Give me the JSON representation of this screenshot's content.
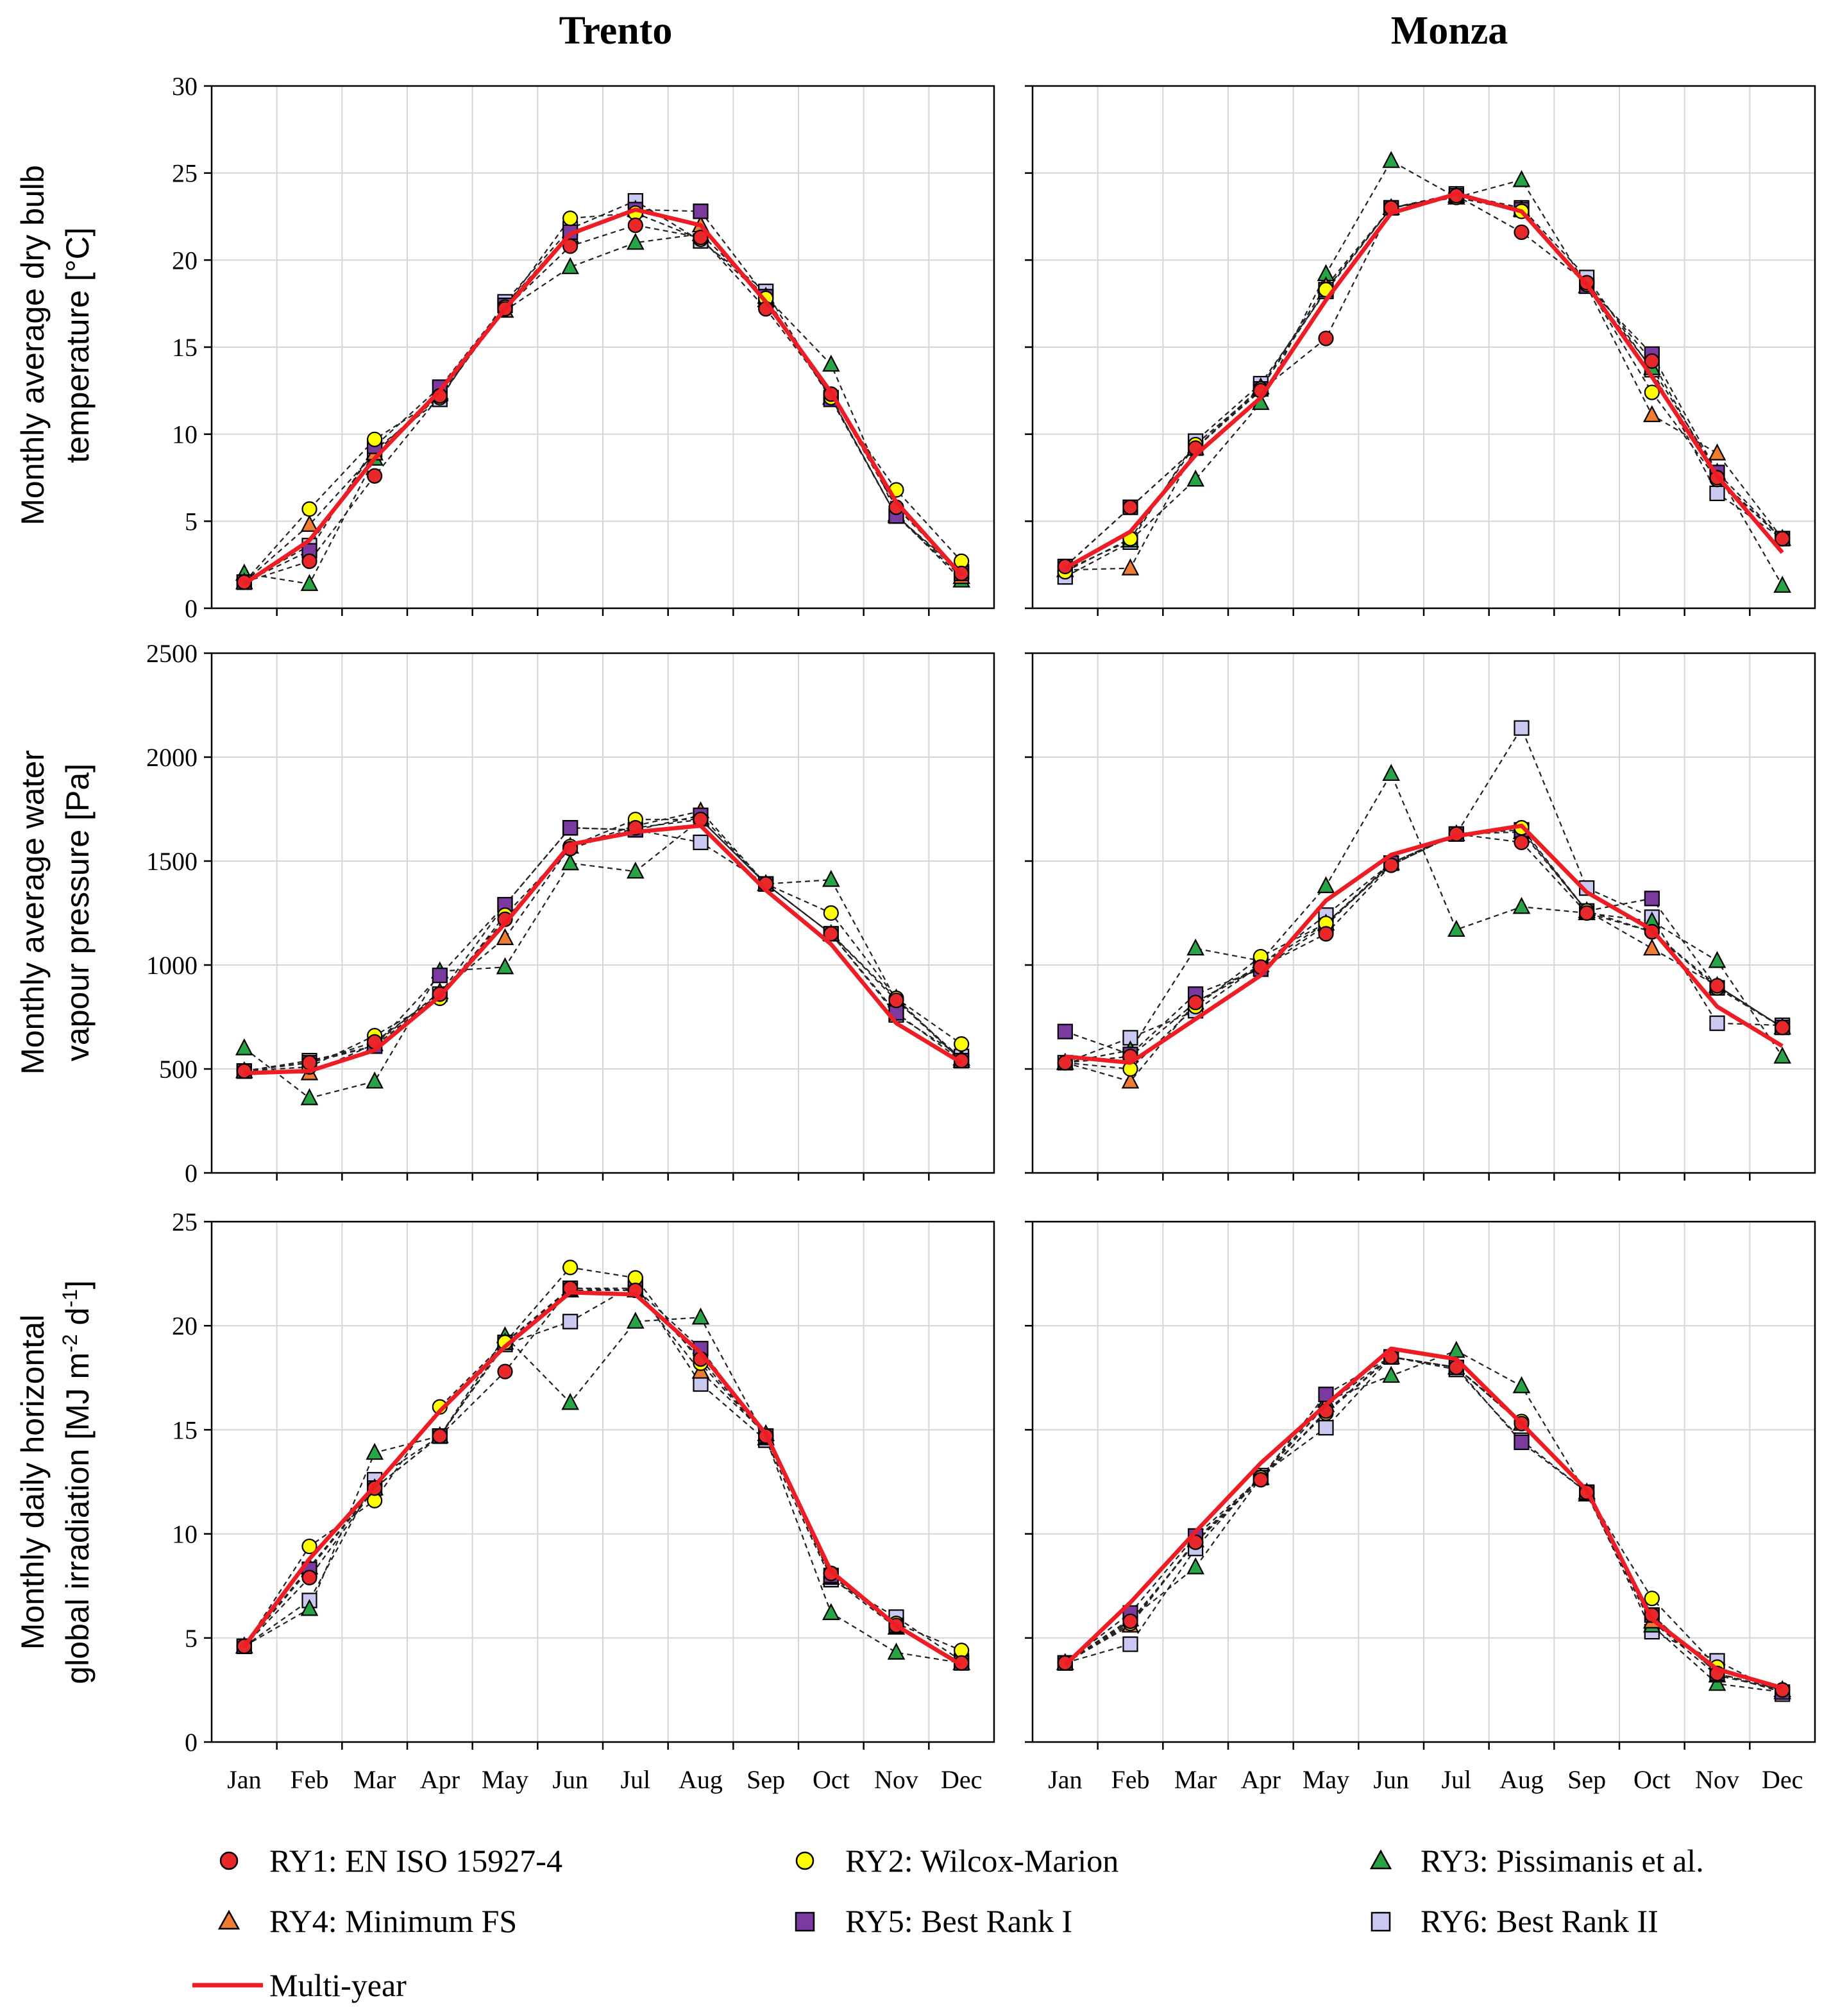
{
  "figure": {
    "column_titles": [
      "Trento",
      "Monza"
    ],
    "row_labels": [
      [
        "Monthly average dry bulb",
        "temperature [°C]"
      ],
      [
        "Monthly average water",
        "vapour pressure  [Pa]"
      ],
      [
        "Monthly daily horizontal",
        "global irradiation [MJ m",
        "-2",
        " d",
        "-1",
        "]"
      ]
    ]
  },
  "series_styles": [
    {
      "key": "RY1",
      "marker": "circle",
      "color": "#e8282b"
    },
    {
      "key": "RY2",
      "marker": "circle",
      "color": "#ffff00"
    },
    {
      "key": "RY3",
      "marker": "triangle",
      "color": "#27a446"
    },
    {
      "key": "RY4",
      "marker": "triangle",
      "color": "#f07c33"
    },
    {
      "key": "RY5",
      "marker": "square",
      "color": "#7a3a9f"
    },
    {
      "key": "RY6",
      "marker": "square",
      "color": "#c9c9f2"
    },
    {
      "key": "MY",
      "marker": "line",
      "color": "#ee1c24"
    }
  ],
  "legend": [
    "RY1: EN ISO 15927-4",
    "RY2: Wilcox-Marion",
    "RY3: Pissimanis et al.",
    "RY4: Minimum FS",
    "RY5: Best Rank I",
    "RY6: Best Rank II",
    "Multi-year"
  ],
  "chart_data": [
    {
      "type": "line",
      "panel": "Trento - dry bulb temperature",
      "title": "Trento",
      "ylabel": "Monthly average dry bulb temperature [°C]",
      "categories": [
        "Jan",
        "Feb",
        "Mar",
        "Apr",
        "May",
        "Jun",
        "Jul",
        "Aug",
        "Sep",
        "Oct",
        "Nov",
        "Dec"
      ],
      "ylim": [
        0,
        30
      ],
      "yticks": [
        "0",
        "5",
        "10",
        "15",
        "20",
        "25",
        "30"
      ],
      "series": [
        {
          "name": "RY1",
          "values": [
            1.5,
            2.7,
            7.6,
            12.2,
            17.2,
            20.8,
            22.0,
            21.3,
            17.2,
            12.3,
            5.8,
            2.0
          ]
        },
        {
          "name": "RY2",
          "values": [
            1.5,
            5.7,
            9.7,
            12.1,
            17.3,
            22.4,
            22.7,
            21.2,
            17.8,
            12.1,
            6.8,
            2.7
          ]
        },
        {
          "name": "RY3",
          "values": [
            2.0,
            1.4,
            8.6,
            12.3,
            17.1,
            19.6,
            21.0,
            21.5,
            17.9,
            14.0,
            5.4,
            1.6
          ]
        },
        {
          "name": "RY4",
          "values": [
            1.5,
            4.8,
            8.9,
            12.4,
            17.1,
            21.4,
            22.9,
            22.0,
            17.7,
            12.1,
            5.3,
            1.8
          ]
        },
        {
          "name": "RY5",
          "values": [
            1.5,
            3.3,
            9.3,
            12.7,
            17.4,
            21.6,
            22.9,
            22.8,
            17.9,
            12.0,
            5.3,
            2.0
          ]
        },
        {
          "name": "RY6",
          "values": [
            1.5,
            3.6,
            9.1,
            12.0,
            17.6,
            21.8,
            23.4,
            21.1,
            18.2,
            12.1,
            5.3,
            2.1
          ]
        },
        {
          "name": "Multi-year",
          "values": [
            1.4,
            3.9,
            8.6,
            12.5,
            17.2,
            21.5,
            22.9,
            22.0,
            17.6,
            12.4,
            6.1,
            1.9
          ]
        }
      ]
    },
    {
      "type": "line",
      "panel": "Monza - dry bulb temperature",
      "title": "Monza",
      "categories": [
        "Jan",
        "Feb",
        "Mar",
        "Apr",
        "May",
        "Jun",
        "Jul",
        "Aug",
        "Sep",
        "Oct",
        "Nov",
        "Dec"
      ],
      "ylim": [
        0,
        30
      ],
      "series": [
        {
          "name": "RY1",
          "values": [
            2.4,
            5.8,
            9.2,
            12.5,
            15.5,
            23.0,
            23.7,
            21.6,
            18.7,
            14.2,
            7.5,
            4.0
          ]
        },
        {
          "name": "RY2",
          "values": [
            2.1,
            4.0,
            9.4,
            12.6,
            18.3,
            23.0,
            23.6,
            22.8,
            18.6,
            12.4,
            7.4,
            4.0
          ]
        },
        {
          "name": "RY3",
          "values": [
            2.2,
            3.9,
            7.4,
            11.8,
            19.2,
            25.7,
            23.6,
            24.6,
            18.5,
            13.8,
            7.8,
            1.3
          ]
        },
        {
          "name": "RY4",
          "values": [
            2.2,
            2.3,
            9.2,
            12.7,
            18.5,
            23.0,
            23.7,
            22.9,
            18.5,
            11.1,
            8.9,
            4.0
          ]
        },
        {
          "name": "RY5",
          "values": [
            2.4,
            5.8,
            9.2,
            12.6,
            18.3,
            23.0,
            23.7,
            22.9,
            18.5,
            14.6,
            7.8,
            4.0
          ]
        },
        {
          "name": "RY6",
          "values": [
            1.8,
            3.8,
            9.6,
            12.9,
            18.2,
            23.0,
            23.8,
            23.0,
            19.0,
            13.7,
            6.6,
            4.0
          ]
        },
        {
          "name": "Multi-year",
          "values": [
            2.3,
            4.4,
            8.8,
            12.1,
            17.7,
            22.7,
            23.8,
            22.8,
            18.6,
            13.3,
            7.6,
            3.2
          ]
        }
      ]
    },
    {
      "type": "line",
      "panel": "Trento - water vapour pressure",
      "ylabel": "Monthly average water vapour pressure [Pa]",
      "categories": [
        "Jan",
        "Feb",
        "Mar",
        "Apr",
        "May",
        "Jun",
        "Jul",
        "Aug",
        "Sep",
        "Oct",
        "Nov",
        "Dec"
      ],
      "ylim": [
        0,
        2500
      ],
      "yticks": [
        "0",
        "500",
        "1000",
        "1500",
        "2000",
        "2500"
      ],
      "series": [
        {
          "name": "RY1",
          "values": [
            490,
            530,
            630,
            860,
            1220,
            1560,
            1660,
            1700,
            1390,
            1150,
            830,
            540
          ]
        },
        {
          "name": "RY2",
          "values": [
            490,
            510,
            660,
            840,
            1240,
            1570,
            1700,
            1700,
            1390,
            1250,
            840,
            620
          ]
        },
        {
          "name": "RY3",
          "values": [
            600,
            360,
            440,
            970,
            990,
            1490,
            1450,
            1700,
            1390,
            1410,
            830,
            550
          ]
        },
        {
          "name": "RY4",
          "values": [
            490,
            480,
            620,
            870,
            1130,
            1570,
            1670,
            1740,
            1390,
            1150,
            840,
            540
          ]
        },
        {
          "name": "RY5",
          "values": [
            490,
            530,
            610,
            950,
            1290,
            1660,
            1650,
            1720,
            1390,
            1150,
            770,
            540
          ]
        },
        {
          "name": "RY6",
          "values": [
            490,
            540,
            610,
            860,
            1290,
            1660,
            1650,
            1590,
            1390,
            1150,
            760,
            560
          ]
        },
        {
          "name": "Multi-year",
          "values": [
            480,
            490,
            590,
            850,
            1200,
            1580,
            1640,
            1670,
            1360,
            1100,
            720,
            530
          ]
        }
      ]
    },
    {
      "type": "line",
      "panel": "Monza - water vapour pressure",
      "categories": [
        "Jan",
        "Feb",
        "Mar",
        "Apr",
        "May",
        "Jun",
        "Jul",
        "Aug",
        "Sep",
        "Oct",
        "Nov",
        "Dec"
      ],
      "ylim": [
        0,
        2500
      ],
      "series": [
        {
          "name": "RY1",
          "values": [
            530,
            560,
            820,
            990,
            1150,
            1480,
            1630,
            1590,
            1250,
            1160,
            900,
            700
          ]
        },
        {
          "name": "RY2",
          "values": [
            530,
            500,
            800,
            1040,
            1200,
            1480,
            1630,
            1660,
            1260,
            1160,
            890,
            700
          ]
        },
        {
          "name": "RY3",
          "values": [
            530,
            590,
            1080,
            1020,
            1380,
            1920,
            1170,
            1280,
            1250,
            1210,
            1020,
            560
          ]
        },
        {
          "name": "RY4",
          "values": [
            530,
            440,
            820,
            1000,
            1200,
            1490,
            1630,
            1640,
            1260,
            1080,
            900,
            700
          ]
        },
        {
          "name": "RY5",
          "values": [
            680,
            570,
            860,
            980,
            1190,
            1490,
            1630,
            1650,
            1260,
            1320,
            890,
            700
          ]
        },
        {
          "name": "RY6",
          "values": [
            530,
            650,
            780,
            1000,
            1240,
            1490,
            1630,
            2140,
            1370,
            1230,
            720,
            710
          ]
        },
        {
          "name": "Multi-year",
          "values": [
            560,
            530,
            740,
            950,
            1310,
            1530,
            1620,
            1670,
            1350,
            1170,
            800,
            610
          ]
        }
      ]
    },
    {
      "type": "line",
      "panel": "Trento - global irradiation",
      "ylabel": "Monthly daily horizontal global irradiation [MJ m-2 d-1]",
      "categories": [
        "Jan",
        "Feb",
        "Mar",
        "Apr",
        "May",
        "Jun",
        "Jul",
        "Aug",
        "Sep",
        "Oct",
        "Nov",
        "Dec"
      ],
      "xlabels": [
        "Jan",
        "Feb",
        "Mar",
        "Apr",
        "May",
        "Jun",
        "Jul",
        "Aug",
        "Sep",
        "Oct",
        "Nov",
        "Dec"
      ],
      "ylim": [
        0,
        25
      ],
      "yticks": [
        "0",
        "5",
        "10",
        "15",
        "20",
        "25"
      ],
      "series": [
        {
          "name": "RY1",
          "values": [
            4.6,
            7.9,
            12.2,
            14.7,
            17.8,
            21.8,
            21.7,
            18.4,
            14.7,
            8.1,
            5.6,
            3.8
          ]
        },
        {
          "name": "RY2",
          "values": [
            4.6,
            9.4,
            11.6,
            16.1,
            19.2,
            22.8,
            22.3,
            18.2,
            14.7,
            8.1,
            5.7,
            4.4
          ]
        },
        {
          "name": "RY3",
          "values": [
            4.6,
            6.4,
            13.9,
            14.7,
            19.5,
            16.3,
            20.2,
            20.4,
            14.6,
            6.2,
            4.3,
            3.8
          ]
        },
        {
          "name": "RY4",
          "values": [
            4.6,
            8.4,
            12.2,
            14.7,
            19.2,
            21.7,
            21.7,
            17.8,
            14.8,
            7.9,
            5.5,
            3.8
          ]
        },
        {
          "name": "RY5",
          "values": [
            4.6,
            8.3,
            12.2,
            14.7,
            19.2,
            21.8,
            21.8,
            18.9,
            14.7,
            8.0,
            5.6,
            3.8
          ]
        },
        {
          "name": "RY6",
          "values": [
            4.6,
            6.8,
            12.6,
            14.7,
            19.1,
            20.2,
            22.0,
            17.2,
            14.5,
            7.8,
            6.0,
            3.9
          ]
        },
        {
          "name": "Multi-year",
          "values": [
            4.6,
            8.8,
            12.3,
            15.9,
            19.0,
            21.6,
            21.5,
            18.7,
            14.8,
            8.2,
            5.6,
            3.7
          ]
        }
      ]
    },
    {
      "type": "line",
      "panel": "Monza - global irradiation",
      "categories": [
        "Jan",
        "Feb",
        "Mar",
        "Apr",
        "May",
        "Jun",
        "Jul",
        "Aug",
        "Sep",
        "Oct",
        "Nov",
        "Dec"
      ],
      "xlabels": [
        "Jan",
        "Feb",
        "Mar",
        "Apr",
        "May",
        "Jun",
        "Jul",
        "Aug",
        "Sep",
        "Oct",
        "Nov",
        "Dec"
      ],
      "ylim": [
        0,
        25
      ],
      "series": [
        {
          "name": "RY1",
          "values": [
            3.8,
            5.8,
            9.6,
            12.6,
            15.9,
            18.5,
            18.0,
            15.3,
            12.0,
            6.1,
            3.3,
            2.5
          ]
        },
        {
          "name": "RY2",
          "values": [
            3.8,
            5.7,
            9.6,
            12.7,
            15.8,
            18.5,
            18.0,
            15.4,
            12.0,
            6.9,
            3.6,
            2.5
          ]
        },
        {
          "name": "RY3",
          "values": [
            3.8,
            5.9,
            8.4,
            12.7,
            16.4,
            17.6,
            18.8,
            17.1,
            11.9,
            5.6,
            2.8,
            2.4
          ]
        },
        {
          "name": "RY4",
          "values": [
            3.8,
            5.6,
            9.7,
            12.7,
            16.2,
            18.5,
            18.0,
            15.3,
            12.0,
            5.8,
            3.2,
            2.5
          ]
        },
        {
          "name": "RY5",
          "values": [
            3.8,
            6.2,
            9.9,
            12.7,
            16.7,
            18.5,
            18.0,
            14.4,
            12.0,
            6.1,
            3.3,
            2.4
          ]
        },
        {
          "name": "RY6",
          "values": [
            3.8,
            4.7,
            9.3,
            12.8,
            15.1,
            18.5,
            17.9,
            14.5,
            12.0,
            5.3,
            3.9,
            2.3
          ]
        },
        {
          "name": "Multi-year",
          "values": [
            3.7,
            6.7,
            10.1,
            13.4,
            16.2,
            18.9,
            18.4,
            15.3,
            12.1,
            5.9,
            3.5,
            2.6
          ]
        }
      ]
    }
  ]
}
